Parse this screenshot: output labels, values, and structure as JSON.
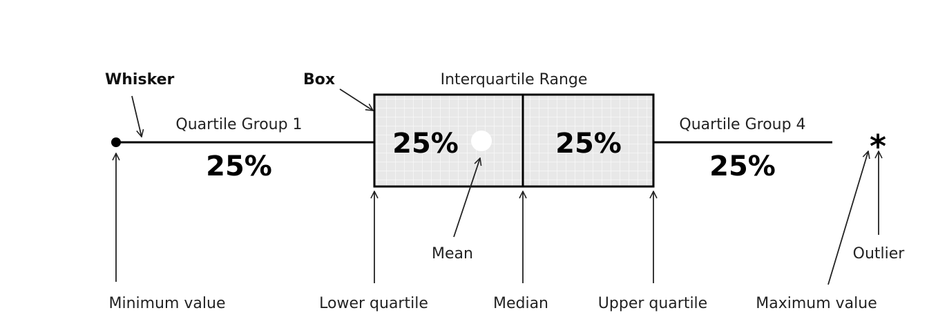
{
  "labels": {
    "whisker": "Whisker",
    "box": "Box",
    "interquartile_range": "Interquartile Range",
    "quartile_group_1": "Quartile Group 1",
    "quartile_group_4": "Quartile Group 4",
    "pct_group_1": "25%",
    "pct_box_left": "25%",
    "pct_box_right": "25%",
    "pct_group_4": "25%",
    "outlier_symbol": "*",
    "mean": "Mean",
    "outlier": "Outlier",
    "minimum_value": "Minimum value",
    "lower_quartile": "Lower quartile",
    "median": "Median",
    "upper_quartile": "Upper quartile",
    "maximum_value": "Maximum value"
  },
  "colors": {
    "box_fill": "#e8e8e8",
    "grid": "#ffffff",
    "line": "#000000",
    "mean_marker": "#ffffff"
  }
}
